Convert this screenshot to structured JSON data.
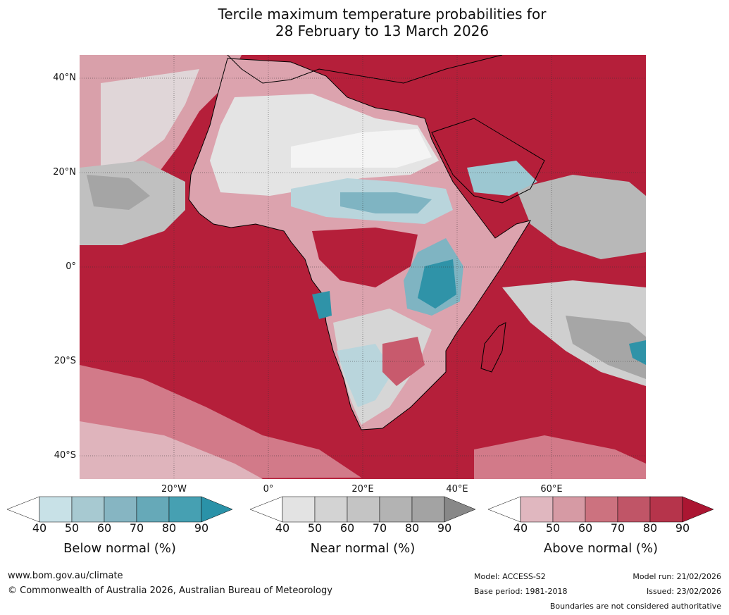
{
  "title": {
    "line1": "Tercile maximum temperature probabilities for",
    "line2": "28 February to 13 March 2026"
  },
  "map": {
    "lat_labels": [
      "40°N",
      "20°N",
      "0°",
      "20°S",
      "40°S"
    ],
    "lon_labels": [
      "20°W",
      "0°",
      "20°E",
      "40°E",
      "60°E"
    ],
    "colors": {
      "ocean_above": "#b51f3a",
      "above_mid": "#c85a6d",
      "above_light": "#dca3ae",
      "near_light": "#e2e2e2",
      "near_mid": "#c2c2c2",
      "near_dark": "#a5a5a5",
      "below_light": "#b9d5dc",
      "below_mid": "#7fb4c2",
      "below_dark": "#2f93a8",
      "coast": "#000000",
      "borders": "#7a7a7a"
    }
  },
  "legends": [
    {
      "title": "Below normal (%)",
      "ticks": [
        "40",
        "50",
        "60",
        "70",
        "80",
        "90"
      ],
      "colors": [
        "#ffffff",
        "#c8e1e7",
        "#a7c9d1",
        "#86b5c2",
        "#66a9b8",
        "#46a0b2",
        "#2a92a8"
      ]
    },
    {
      "title": "Near normal (%)",
      "ticks": [
        "40",
        "50",
        "60",
        "70",
        "80",
        "90"
      ],
      "colors": [
        "#ffffff",
        "#e3e3e3",
        "#d3d3d3",
        "#c4c4c4",
        "#b3b3b3",
        "#a3a3a3",
        "#888888"
      ]
    },
    {
      "title": "Above normal (%)",
      "ticks": [
        "40",
        "50",
        "60",
        "70",
        "80",
        "90"
      ],
      "colors": [
        "#ffffff",
        "#e0b7bf",
        "#d69aa4",
        "#cc727f",
        "#c05567",
        "#b6344b",
        "#ab1632"
      ]
    }
  ],
  "footer": {
    "website": "www.bom.gov.au/climate",
    "copyright": "© Commonwealth of Australia 2026, Australian Bureau of Meteorology",
    "model": "Model: ACCESS-S2",
    "base_period": "Base period: 1981-2018",
    "model_run": "Model run: 21/02/2026",
    "issued": "Issued: 23/02/2026",
    "disclaimer": "Boundaries are not considered authoritative"
  }
}
